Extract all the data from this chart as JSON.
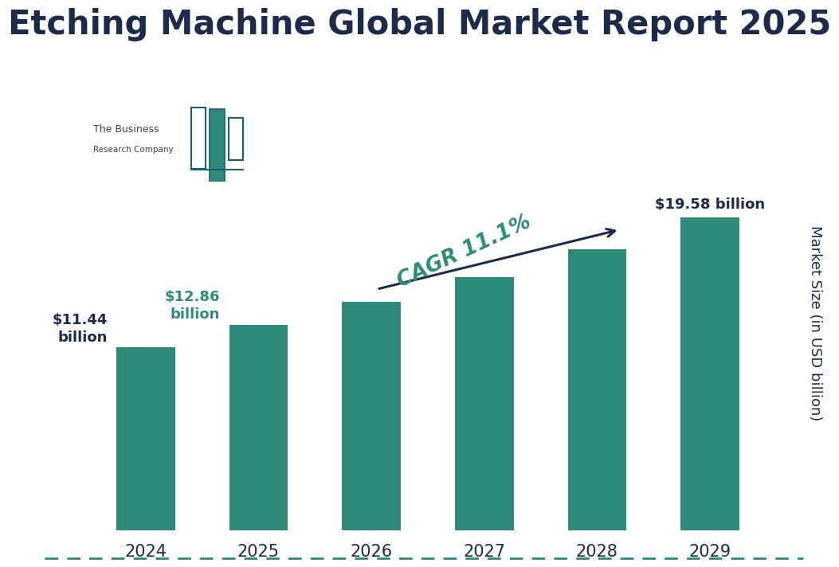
{
  "title": "Etching Machine Global Market Report 2025",
  "years": [
    "2024",
    "2025",
    "2026",
    "2027",
    "2028",
    "2029"
  ],
  "values": [
    11.44,
    12.86,
    14.28,
    15.85,
    17.6,
    19.58
  ],
  "bar_color": "#2E8B7A",
  "background_color": "#FFFFFF",
  "ylabel": "Market Size (in USD billion)",
  "title_color": "#1C2B4A",
  "title_fontsize": 30,
  "bar_label_color_highlight": "#2E8B7A",
  "bar_label_color_dark": "#1C2B4A",
  "cagr_text": "CAGR 11.1%",
  "cagr_color": "#2E8B7A",
  "annotation_2024": "$11.44\nbillion",
  "annotation_2025": "$12.86\nbillion",
  "annotation_2029": "$19.58 billion",
  "dashed_line_color": "#2E8B7A",
  "logo_color": "#2E8B7A",
  "logo_bar_color": "#1C5E6E",
  "ylim": [
    0,
    26
  ],
  "tick_fontsize": 15,
  "ylabel_fontsize": 13
}
